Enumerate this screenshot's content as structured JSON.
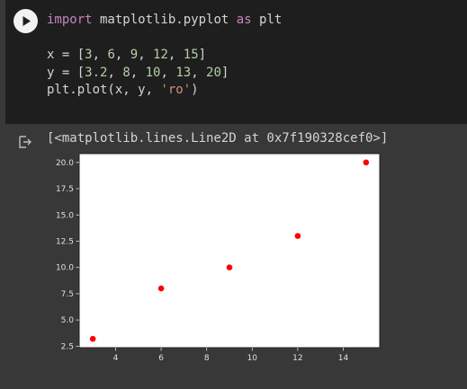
{
  "cell": {
    "run_icon": "play-icon",
    "code": [
      [
        {
          "t": "import",
          "c": "kw"
        },
        {
          "t": " matplotlib.pyplot ",
          "c": ""
        },
        {
          "t": "as",
          "c": "kw"
        },
        {
          "t": " plt",
          "c": ""
        }
      ],
      [],
      [
        {
          "t": "x = [",
          "c": ""
        },
        {
          "t": "3",
          "c": "num"
        },
        {
          "t": ", ",
          "c": ""
        },
        {
          "t": "6",
          "c": "num"
        },
        {
          "t": ", ",
          "c": ""
        },
        {
          "t": "9",
          "c": "num"
        },
        {
          "t": ", ",
          "c": ""
        },
        {
          "t": "12",
          "c": "num"
        },
        {
          "t": ", ",
          "c": ""
        },
        {
          "t": "15",
          "c": "num"
        },
        {
          "t": "]",
          "c": ""
        }
      ],
      [
        {
          "t": "y = [",
          "c": ""
        },
        {
          "t": "3.2",
          "c": "num"
        },
        {
          "t": ", ",
          "c": ""
        },
        {
          "t": "8",
          "c": "num"
        },
        {
          "t": ", ",
          "c": ""
        },
        {
          "t": "10",
          "c": "num"
        },
        {
          "t": ", ",
          "c": ""
        },
        {
          "t": "13",
          "c": "num"
        },
        {
          "t": ", ",
          "c": ""
        },
        {
          "t": "20",
          "c": "num"
        },
        {
          "t": "]",
          "c": ""
        }
      ],
      [
        {
          "t": "plt.plot(x, y, ",
          "c": ""
        },
        {
          "t": "'ro'",
          "c": "str"
        },
        {
          "t": ")",
          "c": ""
        }
      ]
    ]
  },
  "output": {
    "icon": "output-redirect-icon",
    "text": "[<matplotlib.lines.Line2D at 0x7f190328cef0>]"
  },
  "chart_data": {
    "type": "scatter",
    "x": [
      3,
      6,
      9,
      12,
      15
    ],
    "y": [
      3.2,
      8,
      10,
      13,
      20
    ],
    "marker_color": "#ff0000",
    "xlim": [
      2.4,
      15.6
    ],
    "ylim": [
      2.36,
      20.84
    ],
    "xticks": [
      4,
      6,
      8,
      10,
      12,
      14
    ],
    "xtick_labels": [
      "4",
      "6",
      "8",
      "10",
      "12",
      "14"
    ],
    "yticks": [
      2.5,
      5.0,
      7.5,
      10.0,
      12.5,
      15.0,
      17.5,
      20.0
    ],
    "ytick_labels": [
      "2.5",
      "5.0",
      "7.5",
      "10.0",
      "12.5",
      "15.0",
      "17.5",
      "20.0"
    ],
    "grid": false,
    "title": "",
    "xlabel": "",
    "ylabel": ""
  }
}
